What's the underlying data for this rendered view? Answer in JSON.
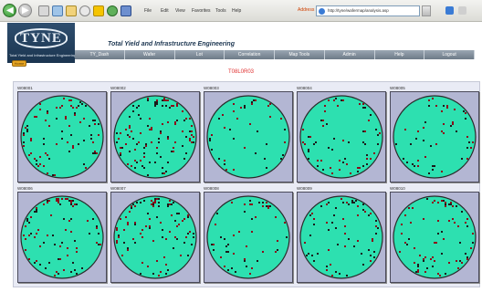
{
  "browser": {
    "menu": [
      "File",
      "Edit",
      "View",
      "Favorites",
      "Tools",
      "Help"
    ],
    "address_label": "Address",
    "address_value": "http://tyne/wafermap/analysis.asp"
  },
  "app": {
    "logo_text": "TYNE",
    "tagline": "Total Yield and Infrastructure Engineering",
    "title": "Total Yield and Infrastructure Engineering",
    "nav": [
      "TY_Dash",
      "Wafer",
      "Lot",
      "Correlation",
      "Map Tools",
      "Admin",
      "Help",
      "Logout"
    ],
    "home_label": "Home",
    "heading": "T08L0R03"
  },
  "colors": {
    "good_die": "#2de0b0",
    "fail_die": "#8b0a1a",
    "frame_bg": "#b3b6d3",
    "heading_red": "#e03030"
  },
  "wafers": [
    {
      "id": "W08001",
      "fail_rate": 0.05
    },
    {
      "id": "W08002",
      "fail_rate": 0.09
    },
    {
      "id": "W08003",
      "fail_rate": 0.03
    },
    {
      "id": "W08004",
      "fail_rate": 0.04
    },
    {
      "id": "W08005",
      "fail_rate": 0.04
    },
    {
      "id": "W08006",
      "fail_rate": 0.06
    },
    {
      "id": "W08007",
      "fail_rate": 0.07
    },
    {
      "id": "W08008",
      "fail_rate": 0.04
    },
    {
      "id": "W08009",
      "fail_rate": 0.05
    },
    {
      "id": "W08010",
      "fail_rate": 0.06
    }
  ]
}
